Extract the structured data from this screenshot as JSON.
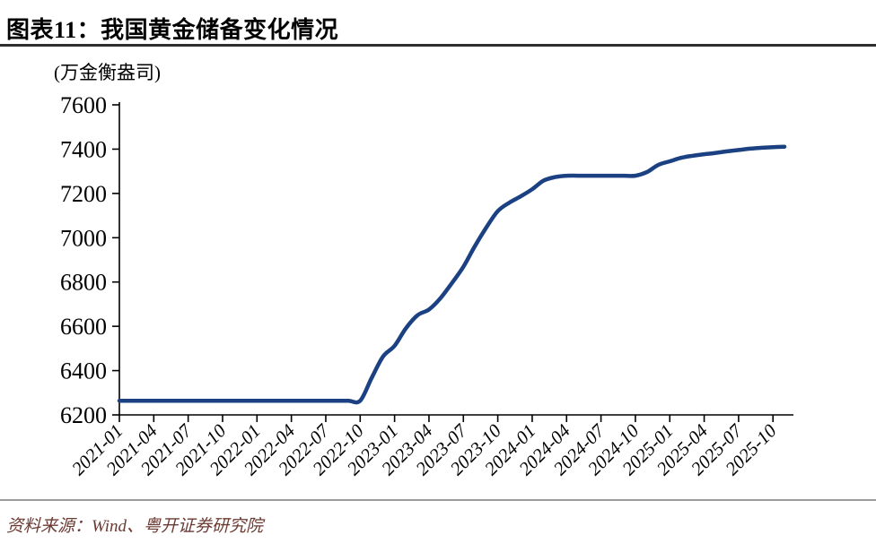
{
  "header": {
    "title": "图表11：我国黄金储备变化情况"
  },
  "footer": {
    "source": "资料来源：Wind、粤开证券研究院"
  },
  "colors": {
    "background": "#FFFFFF",
    "line": "#1B4183",
    "axis": "#000000",
    "tick_text": "#000000",
    "title_divider": "#2E2E2E",
    "footer_divider": "#9B9B9B",
    "source_text": "#6B3A32"
  },
  "chart_data": {
    "type": "line",
    "title": "我国黄金储备变化情况",
    "unit_label": "(万金衡盎司)",
    "xlabel": "",
    "ylabel": "万金衡盎司",
    "grid": false,
    "legend": false,
    "x_label_rotation": 45,
    "ylim": [
      6200,
      7600
    ],
    "y_ticks": [
      6200,
      6400,
      6600,
      6800,
      7000,
      7200,
      7400,
      7600
    ],
    "x_tick_labels": [
      "2021-01",
      "2021-04",
      "2021-07",
      "2021-10",
      "2022-01",
      "2022-04",
      "2022-07",
      "2022-10",
      "2023-01",
      "2023-04",
      "2023-07",
      "2023-10",
      "2024-01",
      "2024-04",
      "2024-07",
      "2024-10",
      "2025-01",
      "2025-04",
      "2025-07",
      "2025-10"
    ],
    "x": [
      "2021-01",
      "2021-02",
      "2021-03",
      "2021-04",
      "2021-05",
      "2021-06",
      "2021-07",
      "2021-08",
      "2021-09",
      "2021-10",
      "2021-11",
      "2021-12",
      "2022-01",
      "2022-02",
      "2022-03",
      "2022-04",
      "2022-05",
      "2022-06",
      "2022-07",
      "2022-08",
      "2022-09",
      "2022-10",
      "2022-11",
      "2022-12",
      "2023-01",
      "2023-02",
      "2023-03",
      "2023-04",
      "2023-05",
      "2023-06",
      "2023-07",
      "2023-08",
      "2023-09",
      "2023-10",
      "2023-11",
      "2023-12",
      "2024-01",
      "2024-02",
      "2024-03",
      "2024-04",
      "2024-05",
      "2024-06",
      "2024-07",
      "2024-08",
      "2024-09",
      "2024-10",
      "2024-11",
      "2024-12",
      "2025-01",
      "2025-02",
      "2025-03",
      "2025-04",
      "2025-05",
      "2025-06",
      "2025-07",
      "2025-08",
      "2025-09",
      "2025-10",
      "2025-11"
    ],
    "values": [
      6264,
      6264,
      6264,
      6264,
      6264,
      6264,
      6264,
      6264,
      6264,
      6264,
      6264,
      6264,
      6264,
      6264,
      6264,
      6264,
      6264,
      6264,
      6264,
      6264,
      6264,
      6264,
      6367,
      6464,
      6512,
      6592,
      6650,
      6676,
      6727,
      6795,
      6869,
      6962,
      7046,
      7120,
      7158,
      7187,
      7219,
      7258,
      7274,
      7280,
      7280,
      7280,
      7280,
      7280,
      7280,
      7280,
      7296,
      7329,
      7345,
      7361,
      7370,
      7377,
      7383,
      7390,
      7396,
      7402,
      7406,
      7409,
      7411
    ]
  }
}
